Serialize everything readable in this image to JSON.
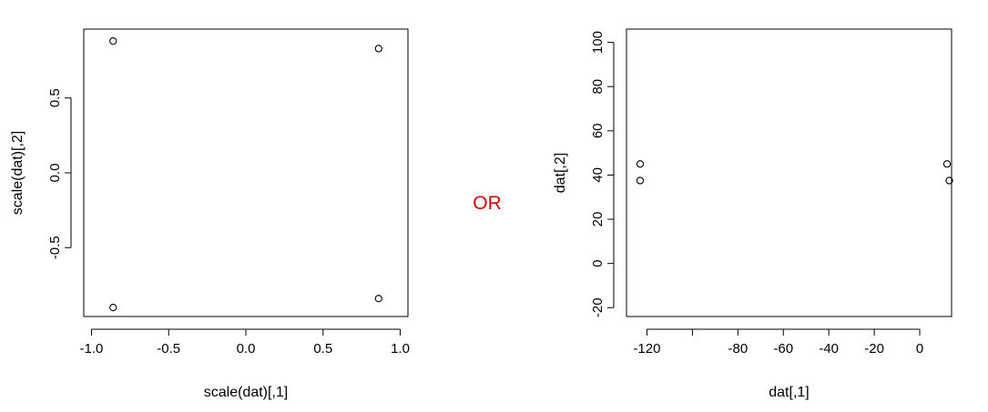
{
  "separator_text": "OR",
  "colors": {
    "separator": "#d40000",
    "axis": "#000000",
    "points": "#000000",
    "background": "#ffffff"
  },
  "chart_data": [
    {
      "type": "scatter",
      "title": "",
      "xlabel": "scale(dat)[,1]",
      "ylabel": "scale(dat)[,2]",
      "xlim": [
        -1.05,
        1.05
      ],
      "ylim": [
        -0.96,
        0.96
      ],
      "xticks": [
        -1.0,
        -0.5,
        0.0,
        0.5,
        1.0
      ],
      "xtick_labels": [
        "-1.0",
        "-0.5",
        "0.0",
        "0.5",
        "1.0"
      ],
      "yticks": [
        -0.5,
        0.0,
        0.5
      ],
      "ytick_labels": [
        "-0.5",
        "0.0",
        "0.5"
      ],
      "marker": "open-circle",
      "grid": false,
      "points": [
        {
          "x": -0.86,
          "y": 0.88
        },
        {
          "x": 0.86,
          "y": 0.83
        },
        {
          "x": -0.86,
          "y": -0.9
        },
        {
          "x": 0.86,
          "y": -0.84
        }
      ]
    },
    {
      "type": "scatter",
      "title": "",
      "xlabel": "dat[,1]",
      "ylabel": "dat[,2]",
      "xlim": [
        -129,
        14
      ],
      "ylim": [
        -24,
        106
      ],
      "xticks": [
        -120,
        -100,
        -80,
        -60,
        -40,
        -20,
        0
      ],
      "xtick_labels": [
        "-120",
        "",
        "-80",
        "-60",
        "-40",
        "-20",
        "0"
      ],
      "yticks": [
        -20,
        0,
        20,
        40,
        60,
        80,
        100
      ],
      "ytick_labels": [
        "-20",
        "0",
        "20",
        "40",
        "60",
        "80",
        "100"
      ],
      "marker": "open-circle",
      "grid": false,
      "points": [
        {
          "x": -123,
          "y": 45
        },
        {
          "x": -123,
          "y": 37.5
        },
        {
          "x": 12,
          "y": 45
        },
        {
          "x": 13,
          "y": 37.5
        }
      ]
    }
  ]
}
